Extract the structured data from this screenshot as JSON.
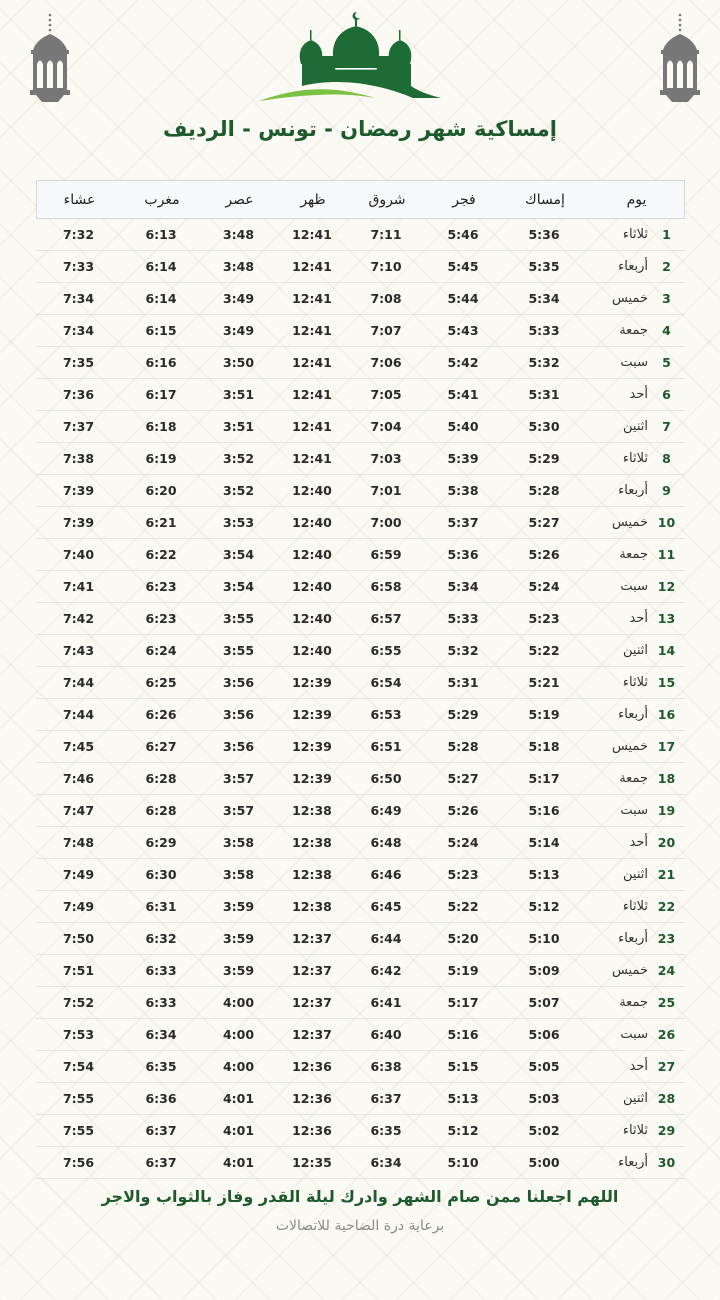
{
  "title": "إمساكية شهر رمضان - تونس - الرديف",
  "colors": {
    "brand_green": "#1d6b35",
    "accent_light_green": "#7cc242",
    "lantern_gray": "#777777"
  },
  "icons": {
    "lantern": "lantern-icon",
    "logo": "mosque-logo"
  },
  "table": {
    "headers": {
      "day": "يوم",
      "imsak": "إمساك",
      "fajr": "فجر",
      "shuruq": "شروق",
      "dhuhr": "ظهر",
      "asr": "عصر",
      "maghrib": "مغرب",
      "isha": "عشاء"
    },
    "rows": [
      {
        "n": "1",
        "day": "ثلاثاء",
        "imsak": "5:36",
        "fajr": "5:46",
        "shuruq": "7:11",
        "dhuhr": "12:41",
        "asr": "3:48",
        "maghrib": "6:13",
        "isha": "7:32"
      },
      {
        "n": "2",
        "day": "أربعاء",
        "imsak": "5:35",
        "fajr": "5:45",
        "shuruq": "7:10",
        "dhuhr": "12:41",
        "asr": "3:48",
        "maghrib": "6:14",
        "isha": "7:33"
      },
      {
        "n": "3",
        "day": "خميس",
        "imsak": "5:34",
        "fajr": "5:44",
        "shuruq": "7:08",
        "dhuhr": "12:41",
        "asr": "3:49",
        "maghrib": "6:14",
        "isha": "7:34"
      },
      {
        "n": "4",
        "day": "جمعة",
        "imsak": "5:33",
        "fajr": "5:43",
        "shuruq": "7:07",
        "dhuhr": "12:41",
        "asr": "3:49",
        "maghrib": "6:15",
        "isha": "7:34"
      },
      {
        "n": "5",
        "day": "سبت",
        "imsak": "5:32",
        "fajr": "5:42",
        "shuruq": "7:06",
        "dhuhr": "12:41",
        "asr": "3:50",
        "maghrib": "6:16",
        "isha": "7:35"
      },
      {
        "n": "6",
        "day": "أحد",
        "imsak": "5:31",
        "fajr": "5:41",
        "shuruq": "7:05",
        "dhuhr": "12:41",
        "asr": "3:51",
        "maghrib": "6:17",
        "isha": "7:36"
      },
      {
        "n": "7",
        "day": "اثنين",
        "imsak": "5:30",
        "fajr": "5:40",
        "shuruq": "7:04",
        "dhuhr": "12:41",
        "asr": "3:51",
        "maghrib": "6:18",
        "isha": "7:37"
      },
      {
        "n": "8",
        "day": "ثلاثاء",
        "imsak": "5:29",
        "fajr": "5:39",
        "shuruq": "7:03",
        "dhuhr": "12:41",
        "asr": "3:52",
        "maghrib": "6:19",
        "isha": "7:38"
      },
      {
        "n": "9",
        "day": "أربعاء",
        "imsak": "5:28",
        "fajr": "5:38",
        "shuruq": "7:01",
        "dhuhr": "12:40",
        "asr": "3:52",
        "maghrib": "6:20",
        "isha": "7:39"
      },
      {
        "n": "10",
        "day": "خميس",
        "imsak": "5:27",
        "fajr": "5:37",
        "shuruq": "7:00",
        "dhuhr": "12:40",
        "asr": "3:53",
        "maghrib": "6:21",
        "isha": "7:39"
      },
      {
        "n": "11",
        "day": "جمعة",
        "imsak": "5:26",
        "fajr": "5:36",
        "shuruq": "6:59",
        "dhuhr": "12:40",
        "asr": "3:54",
        "maghrib": "6:22",
        "isha": "7:40"
      },
      {
        "n": "12",
        "day": "سبت",
        "imsak": "5:24",
        "fajr": "5:34",
        "shuruq": "6:58",
        "dhuhr": "12:40",
        "asr": "3:54",
        "maghrib": "6:23",
        "isha": "7:41"
      },
      {
        "n": "13",
        "day": "أحد",
        "imsak": "5:23",
        "fajr": "5:33",
        "shuruq": "6:57",
        "dhuhr": "12:40",
        "asr": "3:55",
        "maghrib": "6:23",
        "isha": "7:42"
      },
      {
        "n": "14",
        "day": "اثنين",
        "imsak": "5:22",
        "fajr": "5:32",
        "shuruq": "6:55",
        "dhuhr": "12:40",
        "asr": "3:55",
        "maghrib": "6:24",
        "isha": "7:43"
      },
      {
        "n": "15",
        "day": "ثلاثاء",
        "imsak": "5:21",
        "fajr": "5:31",
        "shuruq": "6:54",
        "dhuhr": "12:39",
        "asr": "3:56",
        "maghrib": "6:25",
        "isha": "7:44"
      },
      {
        "n": "16",
        "day": "أربعاء",
        "imsak": "5:19",
        "fajr": "5:29",
        "shuruq": "6:53",
        "dhuhr": "12:39",
        "asr": "3:56",
        "maghrib": "6:26",
        "isha": "7:44"
      },
      {
        "n": "17",
        "day": "خميس",
        "imsak": "5:18",
        "fajr": "5:28",
        "shuruq": "6:51",
        "dhuhr": "12:39",
        "asr": "3:56",
        "maghrib": "6:27",
        "isha": "7:45"
      },
      {
        "n": "18",
        "day": "جمعة",
        "imsak": "5:17",
        "fajr": "5:27",
        "shuruq": "6:50",
        "dhuhr": "12:39",
        "asr": "3:57",
        "maghrib": "6:28",
        "isha": "7:46"
      },
      {
        "n": "19",
        "day": "سبت",
        "imsak": "5:16",
        "fajr": "5:26",
        "shuruq": "6:49",
        "dhuhr": "12:38",
        "asr": "3:57",
        "maghrib": "6:28",
        "isha": "7:47"
      },
      {
        "n": "20",
        "day": "أحد",
        "imsak": "5:14",
        "fajr": "5:24",
        "shuruq": "6:48",
        "dhuhr": "12:38",
        "asr": "3:58",
        "maghrib": "6:29",
        "isha": "7:48"
      },
      {
        "n": "21",
        "day": "اثنين",
        "imsak": "5:13",
        "fajr": "5:23",
        "shuruq": "6:46",
        "dhuhr": "12:38",
        "asr": "3:58",
        "maghrib": "6:30",
        "isha": "7:49"
      },
      {
        "n": "22",
        "day": "ثلاثاء",
        "imsak": "5:12",
        "fajr": "5:22",
        "shuruq": "6:45",
        "dhuhr": "12:38",
        "asr": "3:59",
        "maghrib": "6:31",
        "isha": "7:49"
      },
      {
        "n": "23",
        "day": "أربعاء",
        "imsak": "5:10",
        "fajr": "5:20",
        "shuruq": "6:44",
        "dhuhr": "12:37",
        "asr": "3:59",
        "maghrib": "6:32",
        "isha": "7:50"
      },
      {
        "n": "24",
        "day": "خميس",
        "imsak": "5:09",
        "fajr": "5:19",
        "shuruq": "6:42",
        "dhuhr": "12:37",
        "asr": "3:59",
        "maghrib": "6:33",
        "isha": "7:51"
      },
      {
        "n": "25",
        "day": "جمعة",
        "imsak": "5:07",
        "fajr": "5:17",
        "shuruq": "6:41",
        "dhuhr": "12:37",
        "asr": "4:00",
        "maghrib": "6:33",
        "isha": "7:52"
      },
      {
        "n": "26",
        "day": "سبت",
        "imsak": "5:06",
        "fajr": "5:16",
        "shuruq": "6:40",
        "dhuhr": "12:37",
        "asr": "4:00",
        "maghrib": "6:34",
        "isha": "7:53"
      },
      {
        "n": "27",
        "day": "أحد",
        "imsak": "5:05",
        "fajr": "5:15",
        "shuruq": "6:38",
        "dhuhr": "12:36",
        "asr": "4:00",
        "maghrib": "6:35",
        "isha": "7:54"
      },
      {
        "n": "28",
        "day": "اثنين",
        "imsak": "5:03",
        "fajr": "5:13",
        "shuruq": "6:37",
        "dhuhr": "12:36",
        "asr": "4:01",
        "maghrib": "6:36",
        "isha": "7:55"
      },
      {
        "n": "29",
        "day": "ثلاثاء",
        "imsak": "5:02",
        "fajr": "5:12",
        "shuruq": "6:35",
        "dhuhr": "12:36",
        "asr": "4:01",
        "maghrib": "6:37",
        "isha": "7:55"
      },
      {
        "n": "30",
        "day": "أربعاء",
        "imsak": "5:00",
        "fajr": "5:10",
        "shuruq": "6:34",
        "dhuhr": "12:35",
        "asr": "4:01",
        "maghrib": "6:37",
        "isha": "7:56"
      }
    ]
  },
  "dua": "اللهم اجعلنا ممن صام الشهر وادرك ليلة القدر وفاز بالثواب والاجر",
  "sponsor": "برعاية درة الضاحية للاتصالات"
}
